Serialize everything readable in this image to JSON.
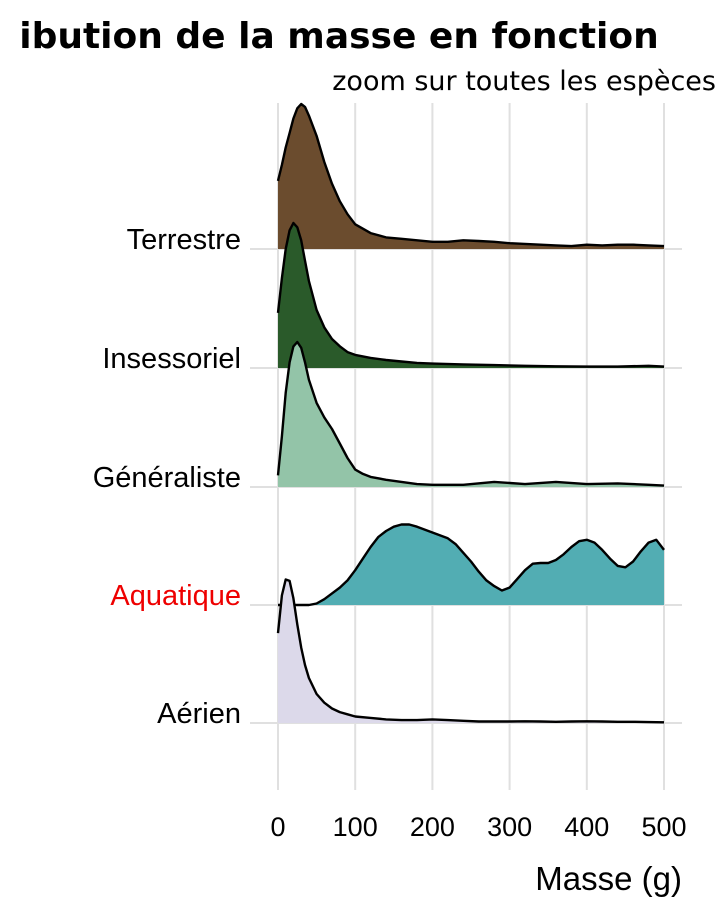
{
  "chart_data": {
    "type": "ridgeline",
    "title": "ibution de la masse en fonction",
    "subtitle": "zoom sur toutes les espèces",
    "xlabel": "Masse (g)",
    "ylabel": "",
    "xlim": [
      0,
      500
    ],
    "x_ticks": [
      0,
      100,
      200,
      300,
      400,
      500
    ],
    "grid": true,
    "series": [
      {
        "name": "Terrestre",
        "fill": "#6b4c2e",
        "label_color": "#000000",
        "points": [
          [
            0,
            0.47
          ],
          [
            5,
            0.58
          ],
          [
            10,
            0.7
          ],
          [
            15,
            0.8
          ],
          [
            20,
            0.9
          ],
          [
            25,
            0.97
          ],
          [
            30,
            1.0
          ],
          [
            35,
            0.98
          ],
          [
            40,
            0.92
          ],
          [
            50,
            0.78
          ],
          [
            60,
            0.6
          ],
          [
            70,
            0.45
          ],
          [
            80,
            0.33
          ],
          [
            90,
            0.24
          ],
          [
            100,
            0.17
          ],
          [
            120,
            0.11
          ],
          [
            140,
            0.08
          ],
          [
            160,
            0.07
          ],
          [
            180,
            0.06
          ],
          [
            200,
            0.05
          ],
          [
            220,
            0.05
          ],
          [
            240,
            0.06
          ],
          [
            260,
            0.055
          ],
          [
            280,
            0.05
          ],
          [
            300,
            0.04
          ],
          [
            320,
            0.035
          ],
          [
            340,
            0.03
          ],
          [
            360,
            0.025
          ],
          [
            380,
            0.02
          ],
          [
            400,
            0.03
          ],
          [
            420,
            0.025
          ],
          [
            440,
            0.03
          ],
          [
            460,
            0.03
          ],
          [
            480,
            0.025
          ],
          [
            500,
            0.02
          ]
        ]
      },
      {
        "name": "Insessoriel",
        "fill": "#2a5a2a",
        "label_color": "#000000",
        "points": [
          [
            0,
            0.38
          ],
          [
            5,
            0.62
          ],
          [
            10,
            0.82
          ],
          [
            15,
            0.95
          ],
          [
            20,
            1.0
          ],
          [
            25,
            0.97
          ],
          [
            30,
            0.88
          ],
          [
            35,
            0.74
          ],
          [
            40,
            0.6
          ],
          [
            50,
            0.4
          ],
          [
            60,
            0.28
          ],
          [
            70,
            0.2
          ],
          [
            80,
            0.15
          ],
          [
            90,
            0.11
          ],
          [
            100,
            0.09
          ],
          [
            120,
            0.07
          ],
          [
            140,
            0.055
          ],
          [
            160,
            0.045
          ],
          [
            180,
            0.035
          ],
          [
            200,
            0.03
          ],
          [
            240,
            0.025
          ],
          [
            280,
            0.02
          ],
          [
            320,
            0.015
          ],
          [
            360,
            0.012
          ],
          [
            400,
            0.01
          ],
          [
            440,
            0.01
          ],
          [
            480,
            0.015
          ],
          [
            500,
            0.01
          ]
        ]
      },
      {
        "name": "Généraliste",
        "fill": "#93c4a8",
        "label_color": "#000000",
        "points": [
          [
            0,
            0.08
          ],
          [
            5,
            0.35
          ],
          [
            10,
            0.65
          ],
          [
            15,
            0.86
          ],
          [
            20,
            0.97
          ],
          [
            25,
            1.0
          ],
          [
            30,
            0.96
          ],
          [
            35,
            0.86
          ],
          [
            40,
            0.74
          ],
          [
            50,
            0.58
          ],
          [
            60,
            0.48
          ],
          [
            70,
            0.4
          ],
          [
            80,
            0.3
          ],
          [
            90,
            0.2
          ],
          [
            100,
            0.12
          ],
          [
            110,
            0.09
          ],
          [
            120,
            0.07
          ],
          [
            140,
            0.05
          ],
          [
            160,
            0.035
          ],
          [
            180,
            0.02
          ],
          [
            200,
            0.015
          ],
          [
            240,
            0.015
          ],
          [
            280,
            0.035
          ],
          [
            320,
            0.02
          ],
          [
            360,
            0.035
          ],
          [
            400,
            0.02
          ],
          [
            440,
            0.025
          ],
          [
            480,
            0.015
          ],
          [
            500,
            0.01
          ]
        ]
      },
      {
        "name": "Aquatique",
        "fill": "#52adb3",
        "label_color": "#ee0000",
        "points": [
          [
            40,
            0
          ],
          [
            50,
            0.01
          ],
          [
            60,
            0.04
          ],
          [
            70,
            0.08
          ],
          [
            80,
            0.12
          ],
          [
            90,
            0.17
          ],
          [
            100,
            0.24
          ],
          [
            110,
            0.32
          ],
          [
            120,
            0.4
          ],
          [
            130,
            0.47
          ],
          [
            140,
            0.51
          ],
          [
            150,
            0.54
          ],
          [
            160,
            0.555
          ],
          [
            170,
            0.555
          ],
          [
            180,
            0.54
          ],
          [
            190,
            0.52
          ],
          [
            200,
            0.5
          ],
          [
            210,
            0.48
          ],
          [
            220,
            0.46
          ],
          [
            230,
            0.42
          ],
          [
            240,
            0.36
          ],
          [
            250,
            0.3
          ],
          [
            260,
            0.23
          ],
          [
            270,
            0.17
          ],
          [
            280,
            0.13
          ],
          [
            290,
            0.1
          ],
          [
            300,
            0.12
          ],
          [
            310,
            0.18
          ],
          [
            320,
            0.24
          ],
          [
            330,
            0.285
          ],
          [
            340,
            0.29
          ],
          [
            350,
            0.29
          ],
          [
            360,
            0.31
          ],
          [
            370,
            0.35
          ],
          [
            380,
            0.4
          ],
          [
            390,
            0.44
          ],
          [
            400,
            0.45
          ],
          [
            410,
            0.43
          ],
          [
            420,
            0.38
          ],
          [
            430,
            0.32
          ],
          [
            440,
            0.27
          ],
          [
            450,
            0.26
          ],
          [
            460,
            0.3
          ],
          [
            470,
            0.37
          ],
          [
            480,
            0.43
          ],
          [
            490,
            0.45
          ],
          [
            500,
            0.38
          ]
        ]
      },
      {
        "name": "Aérien",
        "fill": "#dcd9ea",
        "label_color": "#000000",
        "points": [
          [
            0,
            0.62
          ],
          [
            5,
            0.88
          ],
          [
            10,
            0.99
          ],
          [
            15,
            0.98
          ],
          [
            20,
            0.86
          ],
          [
            25,
            0.68
          ],
          [
            30,
            0.52
          ],
          [
            35,
            0.4
          ],
          [
            40,
            0.31
          ],
          [
            50,
            0.2
          ],
          [
            60,
            0.14
          ],
          [
            70,
            0.1
          ],
          [
            80,
            0.075
          ],
          [
            90,
            0.06
          ],
          [
            100,
            0.045
          ],
          [
            120,
            0.035
          ],
          [
            140,
            0.025
          ],
          [
            160,
            0.02
          ],
          [
            180,
            0.02
          ],
          [
            200,
            0.025
          ],
          [
            220,
            0.02
          ],
          [
            240,
            0.015
          ],
          [
            260,
            0.01
          ],
          [
            280,
            0.01
          ],
          [
            300,
            0.01
          ],
          [
            320,
            0.012
          ],
          [
            340,
            0.01
          ],
          [
            360,
            0.008
          ],
          [
            380,
            0.01
          ],
          [
            400,
            0.012
          ],
          [
            420,
            0.01
          ],
          [
            440,
            0.008
          ],
          [
            460,
            0.008
          ],
          [
            480,
            0.006
          ],
          [
            500,
            0.005
          ]
        ]
      }
    ]
  }
}
